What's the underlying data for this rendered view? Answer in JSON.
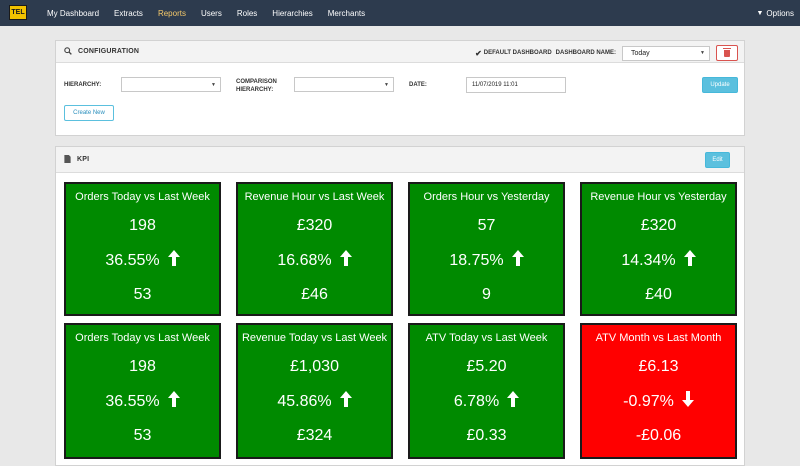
{
  "app": {
    "logo_text": "TEL"
  },
  "nav": {
    "items": [
      {
        "label": "My Dashboard",
        "active": false
      },
      {
        "label": "Extracts",
        "active": false
      },
      {
        "label": "Reports",
        "active": true
      },
      {
        "label": "Users",
        "active": false
      },
      {
        "label": "Roles",
        "active": false
      },
      {
        "label": "Hierarchies",
        "active": false
      },
      {
        "label": "Merchants",
        "active": false
      }
    ],
    "options_label": "Options"
  },
  "config": {
    "title": "CONFIGURATION",
    "default_dashboard_label": "DEFAULT DASHBOARD",
    "dashboard_name_label": "DASHBOARD NAME:",
    "dashboard_name_value": "Today",
    "hierarchy_label": "HIERARCHY:",
    "hierarchy_value": "",
    "comparison_label_line1": "COMPARISON",
    "comparison_label_line2": "HIERARCHY:",
    "comparison_value": "",
    "date_label": "DATE:",
    "date_value": "11/07/2019 11:01",
    "update_label": "Update",
    "create_new_label": "Create New"
  },
  "kpi": {
    "title": "KPI",
    "edit_label": "Edit",
    "cards": [
      {
        "title": "Orders Today vs Last Week",
        "value": "198",
        "change": "36.55%",
        "direction": "up",
        "previous": "53",
        "color": "#008a00"
      },
      {
        "title": "Revenue Hour vs Last Week",
        "value": "£320",
        "change": "16.68%",
        "direction": "up",
        "previous": "£46",
        "color": "#008a00"
      },
      {
        "title": "Orders Hour vs Yesterday",
        "value": "57",
        "change": "18.75%",
        "direction": "up",
        "previous": "9",
        "color": "#008a00"
      },
      {
        "title": "Revenue Hour vs Yesterday",
        "value": "£320",
        "change": "14.34%",
        "direction": "up",
        "previous": "£40",
        "color": "#008a00"
      },
      {
        "title": "Orders Today vs Last Week",
        "value": "198",
        "change": "36.55%",
        "direction": "up",
        "previous": "53",
        "color": "#008a00"
      },
      {
        "title": "Revenue Today vs Last Week",
        "value": "£1,030",
        "change": "45.86%",
        "direction": "up",
        "previous": "£324",
        "color": "#008a00"
      },
      {
        "title": "ATV Today vs Last Week",
        "value": "£5.20",
        "change": "6.78%",
        "direction": "up",
        "previous": "£0.33",
        "color": "#008a00"
      },
      {
        "title": "ATV Month vs Last Month",
        "value": "£6.13",
        "change": "-0.97%",
        "direction": "down",
        "previous": "-£0.06",
        "color": "#ff0000"
      }
    ]
  }
}
